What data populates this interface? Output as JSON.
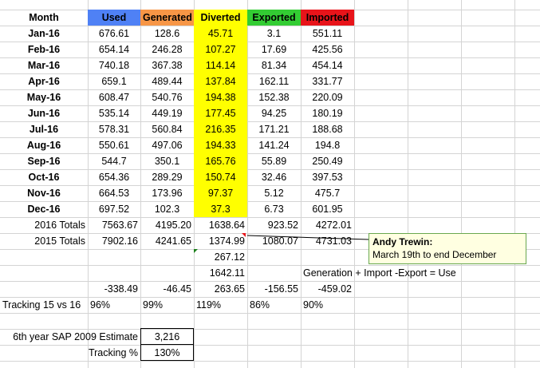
{
  "header": {
    "month": "Month",
    "used": "Used",
    "generated": "Generated",
    "diverted": "Diverted",
    "exported": "Exported",
    "imported": "Imported"
  },
  "colors": {
    "used": "#4f81f5",
    "generated": "#f79646",
    "diverted": "#ffff00",
    "exported": "#33cc33",
    "imported": "#e8141a",
    "note_bg": "#ffffe1",
    "note_border": "#6aa84f"
  },
  "rows": [
    {
      "month": "Jan-16",
      "used": "676.61",
      "generated": "128.6",
      "diverted": "45.71",
      "exported": "3.1",
      "imported": "551.11"
    },
    {
      "month": "Feb-16",
      "used": "654.14",
      "generated": "246.28",
      "diverted": "107.27",
      "exported": "17.69",
      "imported": "425.56"
    },
    {
      "month": "Mar-16",
      "used": "740.18",
      "generated": "367.38",
      "diverted": "114.14",
      "exported": "81.34",
      "imported": "454.14"
    },
    {
      "month": "Apr-16",
      "used": "659.1",
      "generated": "489.44",
      "diverted": "137.84",
      "exported": "162.11",
      "imported": "331.77"
    },
    {
      "month": "May-16",
      "used": "608.47",
      "generated": "540.76",
      "diverted": "194.38",
      "exported": "152.38",
      "imported": "220.09"
    },
    {
      "month": "Jun-16",
      "used": "535.14",
      "generated": "449.19",
      "diverted": "177.45",
      "exported": "94.25",
      "imported": "180.19"
    },
    {
      "month": "Jul-16",
      "used": "578.31",
      "generated": "560.84",
      "diverted": "216.35",
      "exported": "171.21",
      "imported": "188.68"
    },
    {
      "month": "Aug-16",
      "used": "550.61",
      "generated": "497.06",
      "diverted": "194.33",
      "exported": "141.24",
      "imported": "194.8"
    },
    {
      "month": "Sep-16",
      "used": "544.7",
      "generated": "350.1",
      "diverted": "165.76",
      "exported": "55.89",
      "imported": "250.49"
    },
    {
      "month": "Oct-16",
      "used": "654.36",
      "generated": "289.29",
      "diverted": "150.74",
      "exported": "32.46",
      "imported": "397.53"
    },
    {
      "month": "Nov-16",
      "used": "664.53",
      "generated": "173.96",
      "diverted": "97.37",
      "exported": "5.12",
      "imported": "475.7"
    },
    {
      "month": "Dec-16",
      "used": "697.52",
      "generated": "102.3",
      "diverted": "37.3",
      "exported": "6.73",
      "imported": "601.95"
    }
  ],
  "totals_2016": {
    "label": "2016 Totals",
    "used": "7563.67",
    "generated": "4195.20",
    "diverted": "1638.64",
    "exported": "923.52",
    "imported": "4272.01"
  },
  "totals_2015": {
    "label": "2015 Totals",
    "used": "7902.16",
    "generated": "4241.65",
    "diverted": "1374.99",
    "exported": "1080.07",
    "imported": "4731.03"
  },
  "diverted_extra_1": "267.12",
  "diverted_extra_2": "1642.11",
  "formula_text": "Generation + Import -Export = Use",
  "differences": {
    "used": "-338.49",
    "generated": "-46.45",
    "diverted": "263.65",
    "exported": "-156.55",
    "imported": "-459.02"
  },
  "tracking_15_vs_16": {
    "label": "Tracking 15 vs 16",
    "used": "96%",
    "generated": "99%",
    "diverted": "119%",
    "exported": "86%",
    "imported": "90%"
  },
  "sap_estimate": {
    "label": "6th year SAP 2009 Estimate",
    "value": "3,216"
  },
  "tracking_percent": {
    "label": "Tracking %",
    "value": "130%"
  },
  "comment": {
    "author": "Andy Trewin:",
    "text": "March 19th to end December"
  }
}
